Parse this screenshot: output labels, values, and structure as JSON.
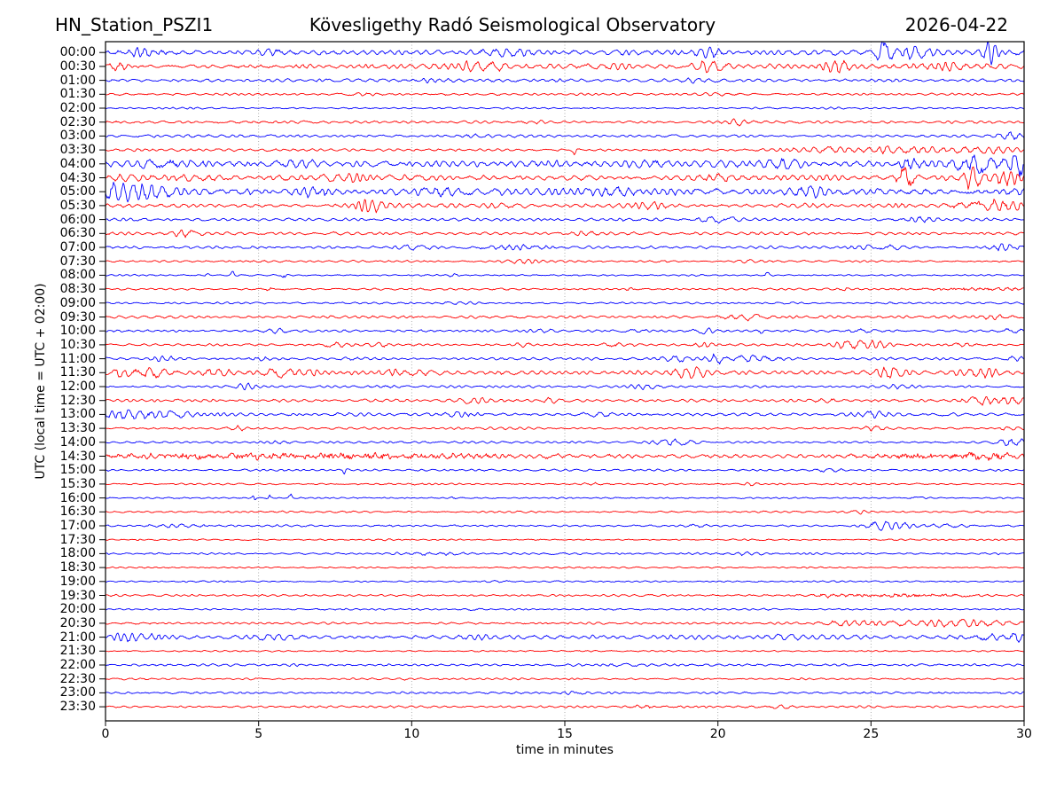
{
  "chart_data": {
    "type": "line",
    "subtype": "helicorder-dayplot",
    "title_left": "HN_Station_PSZI1",
    "title_center": "Kövesligethy Radó Seismological Observatory",
    "title_right": "2026-04-22",
    "xlabel": "time in minutes",
    "ylabel": "UTC (local time = UTC + 02:00)",
    "x_range": [
      0,
      30
    ],
    "x_ticks": [
      0,
      5,
      10,
      15,
      20,
      25,
      30
    ],
    "grid_x": [
      5,
      10,
      15,
      20,
      25
    ],
    "grid": "dotted-vertical",
    "minutes_per_line": 30,
    "lines": 48,
    "colors": {
      "b": "#0000ff",
      "r": "#ff0000"
    },
    "style": {
      "grid_color": "#999999",
      "frame_color": "#000000",
      "hf_base": 0.28,
      "trace_width": 0.9
    },
    "rows": [
      {
        "label": "00:00",
        "c": "b",
        "amp": 2.3,
        "events": [
          [
            1.3,
            0.5,
            2.5
          ],
          [
            5.5,
            0.4,
            2
          ],
          [
            13,
            0.5,
            3.5
          ],
          [
            19.7,
            0.3,
            3.5
          ],
          [
            25.4,
            0.2,
            9
          ],
          [
            26.4,
            0.3,
            4
          ],
          [
            28.9,
            0.15,
            10
          ]
        ]
      },
      {
        "label": "00:30",
        "c": "r",
        "amp": 2.0,
        "events": [
          [
            0.4,
            0.2,
            4
          ],
          [
            12.3,
            0.6,
            3
          ],
          [
            16.2,
            0.4,
            2.5
          ],
          [
            19.8,
            0.4,
            4
          ],
          [
            23.8,
            0.3,
            4.5
          ],
          [
            27.5,
            1.2,
            1.5
          ]
        ]
      },
      {
        "label": "01:00",
        "c": "b",
        "amp": 1.3,
        "events": [
          [
            10.5,
            0.3,
            1.5
          ],
          [
            13,
            0.3,
            1.5
          ],
          [
            19.2,
            0.25,
            2
          ]
        ]
      },
      {
        "label": "01:30",
        "c": "r",
        "amp": 0.9,
        "events": [
          [
            8.5,
            0.3,
            1.2
          ],
          [
            20,
            0.4,
            0.8
          ]
        ]
      },
      {
        "label": "02:00",
        "c": "b",
        "amp": 0.7,
        "events": [
          [
            6,
            0.4,
            0.6
          ]
        ]
      },
      {
        "label": "02:30",
        "c": "r",
        "amp": 1.1,
        "events": [
          [
            14,
            0.3,
            1.2
          ],
          [
            20.6,
            0.15,
            3
          ]
        ]
      },
      {
        "label": "03:00",
        "c": "b",
        "amp": 1.1,
        "events": [
          [
            12,
            0.4,
            1
          ],
          [
            29.6,
            0.25,
            3.5
          ]
        ]
      },
      {
        "label": "03:30",
        "c": "r",
        "amp": 1.1,
        "events": [
          [
            15.35,
            0.05,
            6
          ],
          [
            23.3,
            0.6,
            2
          ],
          [
            26.2,
            0.9,
            2.6
          ],
          [
            28.8,
            0.8,
            2.8
          ]
        ]
      },
      {
        "label": "04:00",
        "c": "b",
        "amp": 2.6,
        "events": [
          [
            2,
            0.6,
            3
          ],
          [
            6,
            0.5,
            2.5
          ],
          [
            14.5,
            0.5,
            2
          ],
          [
            17.6,
            0.4,
            3
          ],
          [
            22,
            0.5,
            2.5
          ],
          [
            26.3,
            0.3,
            6
          ],
          [
            28.6,
            0.7,
            7
          ],
          [
            29.8,
            0.2,
            8
          ]
        ]
      },
      {
        "label": "04:30",
        "c": "r",
        "amp": 2.4,
        "events": [
          [
            3,
            0.5,
            2
          ],
          [
            8,
            0.5,
            2
          ],
          [
            20,
            0.5,
            2.5
          ],
          [
            26.15,
            0.22,
            12
          ],
          [
            28.35,
            0.18,
            11
          ],
          [
            29.3,
            0.4,
            6
          ]
        ]
      },
      {
        "label": "05:00",
        "c": "b",
        "amp": 3.0,
        "events": [
          [
            0.4,
            0.3,
            6
          ],
          [
            1.4,
            0.6,
            5
          ],
          [
            6.8,
            0.3,
            5
          ],
          [
            11,
            0.4,
            3
          ],
          [
            16.5,
            0.5,
            2.5
          ],
          [
            23,
            0.4,
            3
          ]
        ]
      },
      {
        "label": "05:30",
        "c": "r",
        "amp": 1.7,
        "events": [
          [
            8.6,
            0.3,
            4
          ],
          [
            13,
            0.4,
            2
          ],
          [
            17.8,
            0.4,
            2
          ],
          [
            28.9,
            0.9,
            3
          ]
        ],
        "hf_events": [
          [
            29,
            0.8,
            2
          ]
        ]
      },
      {
        "label": "06:00",
        "c": "b",
        "amp": 1.2,
        "events": [
          [
            20,
            0.4,
            3
          ],
          [
            26.6,
            0.4,
            2.5
          ]
        ]
      },
      {
        "label": "06:30",
        "c": "r",
        "amp": 1.2,
        "events": [
          [
            2.6,
            0.3,
            2.5
          ],
          [
            15.7,
            0.3,
            2.2
          ]
        ]
      },
      {
        "label": "07:00",
        "c": "b",
        "amp": 1.1,
        "events": [
          [
            10,
            0.5,
            1.5
          ],
          [
            13.4,
            0.6,
            2.2
          ],
          [
            25.5,
            0.5,
            1.8
          ],
          [
            29.4,
            0.4,
            2.5
          ]
        ]
      },
      {
        "label": "07:30",
        "c": "r",
        "amp": 0.8,
        "events": [
          [
            13.6,
            0.4,
            1.4
          ],
          [
            21,
            0.3,
            0.8
          ]
        ]
      },
      {
        "label": "08:00",
        "c": "b",
        "amp": 0.6,
        "events": [
          [
            3.3,
            0.05,
            3.5
          ],
          [
            4.15,
            0.05,
            2.8
          ],
          [
            5.85,
            0.05,
            4.5
          ],
          [
            11.4,
            0.15,
            1.4
          ],
          [
            21.6,
            0.08,
            2.2
          ]
        ]
      },
      {
        "label": "08:30",
        "c": "r",
        "amp": 0.8,
        "events": [
          [
            5.35,
            0.05,
            3.5
          ],
          [
            17.1,
            0.1,
            2
          ],
          [
            24.2,
            0.1,
            1.5
          ]
        ],
        "hf_events": [
          [
            28.5,
            1.5,
            1.2
          ]
        ]
      },
      {
        "label": "09:00",
        "c": "b",
        "amp": 0.8,
        "events": [
          [
            11.5,
            0.4,
            0.7
          ]
        ]
      },
      {
        "label": "09:30",
        "c": "r",
        "amp": 1.2,
        "events": [
          [
            20.3,
            0.25,
            1.8
          ],
          [
            21.1,
            0.25,
            2.6
          ],
          [
            29,
            0.3,
            1.5
          ]
        ]
      },
      {
        "label": "10:00",
        "c": "b",
        "amp": 1.0,
        "events": [
          [
            5.6,
            0.3,
            1.8
          ],
          [
            14.2,
            0.3,
            1.2
          ],
          [
            17.4,
            0.25,
            1.8
          ],
          [
            19.6,
            0.2,
            2.2
          ],
          [
            21.4,
            0.07,
            3
          ],
          [
            24.6,
            0.25,
            2
          ],
          [
            29.5,
            0.3,
            1.5
          ]
        ]
      },
      {
        "label": "10:30",
        "c": "r",
        "amp": 1.0,
        "events": [
          [
            7.6,
            0.25,
            2
          ],
          [
            9,
            0.25,
            1.6
          ],
          [
            13.6,
            0.2,
            1.4
          ],
          [
            16.6,
            0.25,
            1.8
          ],
          [
            19.6,
            0.2,
            1.8
          ],
          [
            24.3,
            0.35,
            3
          ],
          [
            25.1,
            0.3,
            2
          ],
          [
            28,
            0.3,
            1.8
          ]
        ]
      },
      {
        "label": "11:00",
        "c": "b",
        "amp": 1.1,
        "events": [
          [
            2,
            0.3,
            1.8
          ],
          [
            5.1,
            0.3,
            1.8
          ],
          [
            8,
            0.3,
            1.2
          ],
          [
            18.7,
            0.35,
            2.2
          ],
          [
            19.9,
            0.18,
            6
          ],
          [
            21.2,
            0.7,
            2.5
          ],
          [
            29.7,
            0.25,
            2.5
          ]
        ]
      },
      {
        "label": "11:30",
        "c": "r",
        "amp": 1.9,
        "events": [
          [
            0.6,
            0.25,
            5
          ],
          [
            1.6,
            0.3,
            3.5
          ],
          [
            3.6,
            0.3,
            3.5
          ],
          [
            5.6,
            0.35,
            4.5
          ],
          [
            6.5,
            0.3,
            3
          ],
          [
            10,
            0.5,
            2
          ],
          [
            19,
            0.35,
            4
          ],
          [
            25.6,
            0.35,
            3.5
          ],
          [
            28.7,
            0.4,
            4.5
          ]
        ]
      },
      {
        "label": "12:00",
        "c": "b",
        "amp": 0.9,
        "events": [
          [
            4.6,
            0.25,
            2.2
          ],
          [
            9,
            0.4,
            1
          ],
          [
            17.6,
            0.35,
            2
          ],
          [
            26,
            0.35,
            1.6
          ]
        ]
      },
      {
        "label": "12:30",
        "c": "r",
        "amp": 1.2,
        "events": [
          [
            12,
            0.4,
            2
          ],
          [
            14.6,
            0.3,
            1.4
          ],
          [
            23.6,
            0.3,
            1.6
          ],
          [
            28.8,
            0.5,
            3.5
          ],
          [
            29.7,
            0.2,
            2.5
          ]
        ]
      },
      {
        "label": "13:00",
        "c": "b",
        "amp": 1.2,
        "events": [
          [
            0.4,
            0.25,
            4.5
          ],
          [
            1.1,
            0.4,
            4
          ],
          [
            2.2,
            0.5,
            3
          ],
          [
            11.6,
            0.3,
            2
          ],
          [
            16,
            0.35,
            2
          ],
          [
            25,
            0.4,
            2.2
          ]
        ]
      },
      {
        "label": "13:30",
        "c": "r",
        "amp": 0.9,
        "events": [
          [
            4.3,
            0.18,
            2.2
          ],
          [
            25,
            0.35,
            1.6
          ],
          [
            29.5,
            0.25,
            1.4
          ]
        ]
      },
      {
        "label": "14:00",
        "c": "b",
        "amp": 0.9,
        "events": [
          [
            5.5,
            0.4,
            0.9
          ],
          [
            18.6,
            0.5,
            2.2
          ],
          [
            29.6,
            0.3,
            3.5
          ]
        ]
      },
      {
        "label": "14:30",
        "c": "r",
        "amp": 1.6,
        "events": [
          [
            29,
            0.5,
            1.5
          ]
        ],
        "hf": 0.5,
        "hf_events": [
          [
            6.5,
            4.5,
            2.6
          ],
          [
            28,
            1.8,
            2.6
          ]
        ]
      },
      {
        "label": "15:00",
        "c": "b",
        "amp": 0.8,
        "events": [
          [
            7.8,
            0.07,
            3.5
          ],
          [
            23.6,
            0.25,
            1.6
          ]
        ]
      },
      {
        "label": "15:30",
        "c": "r",
        "amp": 0.7,
        "events": [
          [
            15.8,
            0.2,
            1.6
          ],
          [
            21,
            0.2,
            1.2
          ]
        ]
      },
      {
        "label": "16:00",
        "c": "b",
        "amp": 0.6,
        "events": [
          [
            4.85,
            0.04,
            2.8
          ],
          [
            5.35,
            0.04,
            3.2
          ],
          [
            6.05,
            0.05,
            4.2
          ],
          [
            11.3,
            0.12,
            1.2
          ],
          [
            26.5,
            0.3,
            0.8
          ]
        ]
      },
      {
        "label": "16:30",
        "c": "r",
        "amp": 0.7,
        "events": [
          [
            24.6,
            0.2,
            1.2
          ]
        ]
      },
      {
        "label": "17:00",
        "c": "b",
        "amp": 0.9,
        "events": [
          [
            2.5,
            0.7,
            1.2
          ],
          [
            11.3,
            0.08,
            2
          ],
          [
            19.3,
            0.2,
            2
          ],
          [
            25.35,
            0.3,
            3.5
          ],
          [
            26.1,
            0.25,
            2
          ],
          [
            27.5,
            0.4,
            1.2
          ]
        ]
      },
      {
        "label": "17:30",
        "c": "r",
        "amp": 0.6,
        "events": [
          [
            9,
            0.3,
            0.5
          ]
        ]
      },
      {
        "label": "18:00",
        "c": "b",
        "amp": 0.8,
        "events": [
          [
            10.8,
            0.7,
            1.4
          ],
          [
            21,
            0.4,
            0.8
          ]
        ]
      },
      {
        "label": "18:30",
        "c": "r",
        "amp": 0.6,
        "events": []
      },
      {
        "label": "19:00",
        "c": "b",
        "amp": 0.6,
        "events": [
          [
            13,
            0.4,
            0.5
          ]
        ]
      },
      {
        "label": "19:30",
        "c": "r",
        "amp": 0.8,
        "events": [
          [
            23.6,
            0.4,
            1.4
          ]
        ],
        "hf_events": [
          [
            25.8,
            1.6,
            1.4
          ]
        ]
      },
      {
        "label": "20:00",
        "c": "b",
        "amp": 0.7,
        "events": [
          [
            7,
            0.08,
            1.8
          ],
          [
            12.1,
            0.2,
            1.2
          ]
        ]
      },
      {
        "label": "20:30",
        "c": "r",
        "amp": 0.9,
        "events": [
          [
            24,
            0.4,
            2.4
          ],
          [
            25.8,
            0.8,
            2.6
          ],
          [
            27.6,
            0.6,
            2.2
          ],
          [
            29,
            0.7,
            2.6
          ]
        ]
      },
      {
        "label": "21:00",
        "c": "b",
        "amp": 1.6,
        "events": [
          [
            0.8,
            0.7,
            2.2
          ],
          [
            5.6,
            0.5,
            2.4
          ],
          [
            12,
            0.5,
            1.2
          ],
          [
            22,
            0.5,
            1.2
          ],
          [
            28.8,
            0.6,
            2.8
          ],
          [
            29.8,
            0.15,
            3
          ]
        ]
      },
      {
        "label": "21:30",
        "c": "r",
        "amp": 0.6,
        "events": []
      },
      {
        "label": "22:00",
        "c": "b",
        "amp": 1.0,
        "events": [
          [
            6,
            0.5,
            0.6
          ],
          [
            17,
            0.5,
            0.6
          ]
        ]
      },
      {
        "label": "22:30",
        "c": "r",
        "amp": 0.8,
        "events": []
      },
      {
        "label": "23:00",
        "c": "b",
        "amp": 0.9,
        "events": [
          [
            15.3,
            0.25,
            1.4
          ]
        ]
      },
      {
        "label": "23:30",
        "c": "r",
        "amp": 0.9,
        "events": [
          [
            17.6,
            0.25,
            2
          ],
          [
            22,
            0.4,
            1
          ]
        ]
      }
    ]
  }
}
